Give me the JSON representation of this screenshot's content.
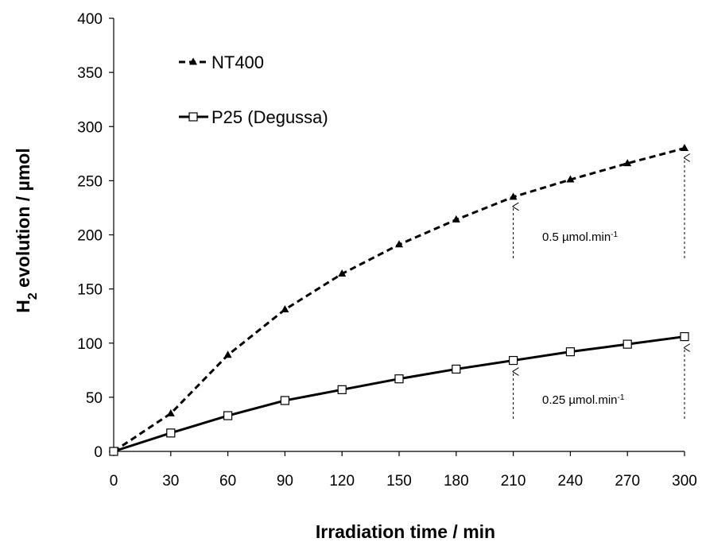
{
  "chart_data": {
    "type": "line",
    "title": "",
    "xlabel": "Irradiation time / min",
    "ylabel": {
      "main": "H",
      "sub": "2",
      "rest": " evolution / µmol"
    },
    "xlim": [
      0,
      300
    ],
    "ylim": [
      0,
      400
    ],
    "x_ticks": [
      0,
      30,
      60,
      90,
      120,
      150,
      180,
      210,
      240,
      270,
      300
    ],
    "y_ticks": [
      0,
      50,
      100,
      150,
      200,
      250,
      300,
      350,
      400
    ],
    "x": [
      0,
      30,
      60,
      90,
      120,
      150,
      180,
      210,
      240,
      270,
      300
    ],
    "series": [
      {
        "name": "NT400",
        "line": "dashed",
        "marker": "filled-triangle",
        "color": "#000000",
        "values": [
          0,
          35,
          89,
          131,
          164,
          191,
          214,
          235,
          251,
          266,
          280
        ]
      },
      {
        "name": "P25 (Degussa)",
        "line": "solid",
        "marker": "open-square",
        "color": "#000000",
        "values": [
          0,
          17,
          33,
          47,
          57,
          67,
          76,
          84,
          92,
          99,
          106
        ]
      }
    ],
    "legend_position": "top-left",
    "grid": false,
    "annotations": [
      {
        "text": "0.5 µmol.min",
        "sup": "-1",
        "series": "NT400",
        "arrows_at_x": [
          210,
          300
        ]
      },
      {
        "text": "0.25 µmol.min",
        "sup": "-1",
        "series": "P25 (Degussa)",
        "arrows_at_x": [
          210,
          300
        ]
      }
    ]
  }
}
